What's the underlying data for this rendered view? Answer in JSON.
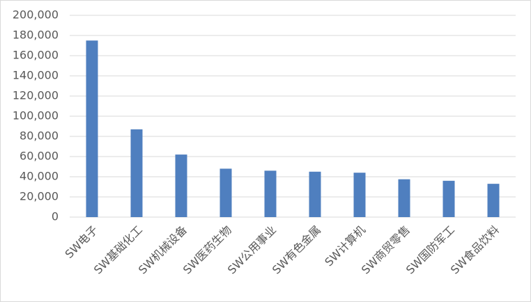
{
  "chart_data": {
    "type": "bar",
    "categories": [
      "SW电子",
      "SW基础化工",
      "SW机械设备",
      "SW医药生物",
      "SW公用事业",
      "SW有色金属",
      "SW计算机",
      "SW商贸零售",
      "SW国防军工",
      "SW食品饮料"
    ],
    "values": [
      175000,
      87000,
      62000,
      48000,
      46000,
      45000,
      44000,
      37500,
      36000,
      33000
    ],
    "color": "#4f7fbf",
    "ylim": [
      0,
      200000
    ],
    "yticks": [
      0,
      {
        "value": 20000,
        "label": "20,000"
      },
      {
        "value": 40000,
        "label": "40,000"
      },
      {
        "value": 60000,
        "label": "60,000"
      },
      {
        "value": 80000,
        "label": "80,000"
      },
      {
        "value": 100000,
        "label": "100,000"
      },
      {
        "value": 120000,
        "label": "120,000"
      },
      {
        "value": 140000,
        "label": "140,000"
      },
      {
        "value": 160000,
        "label": "160,000"
      },
      {
        "value": 180000,
        "label": "180,000"
      },
      {
        "value": 200000,
        "label": "200,000"
      }
    ],
    "grid": true
  }
}
